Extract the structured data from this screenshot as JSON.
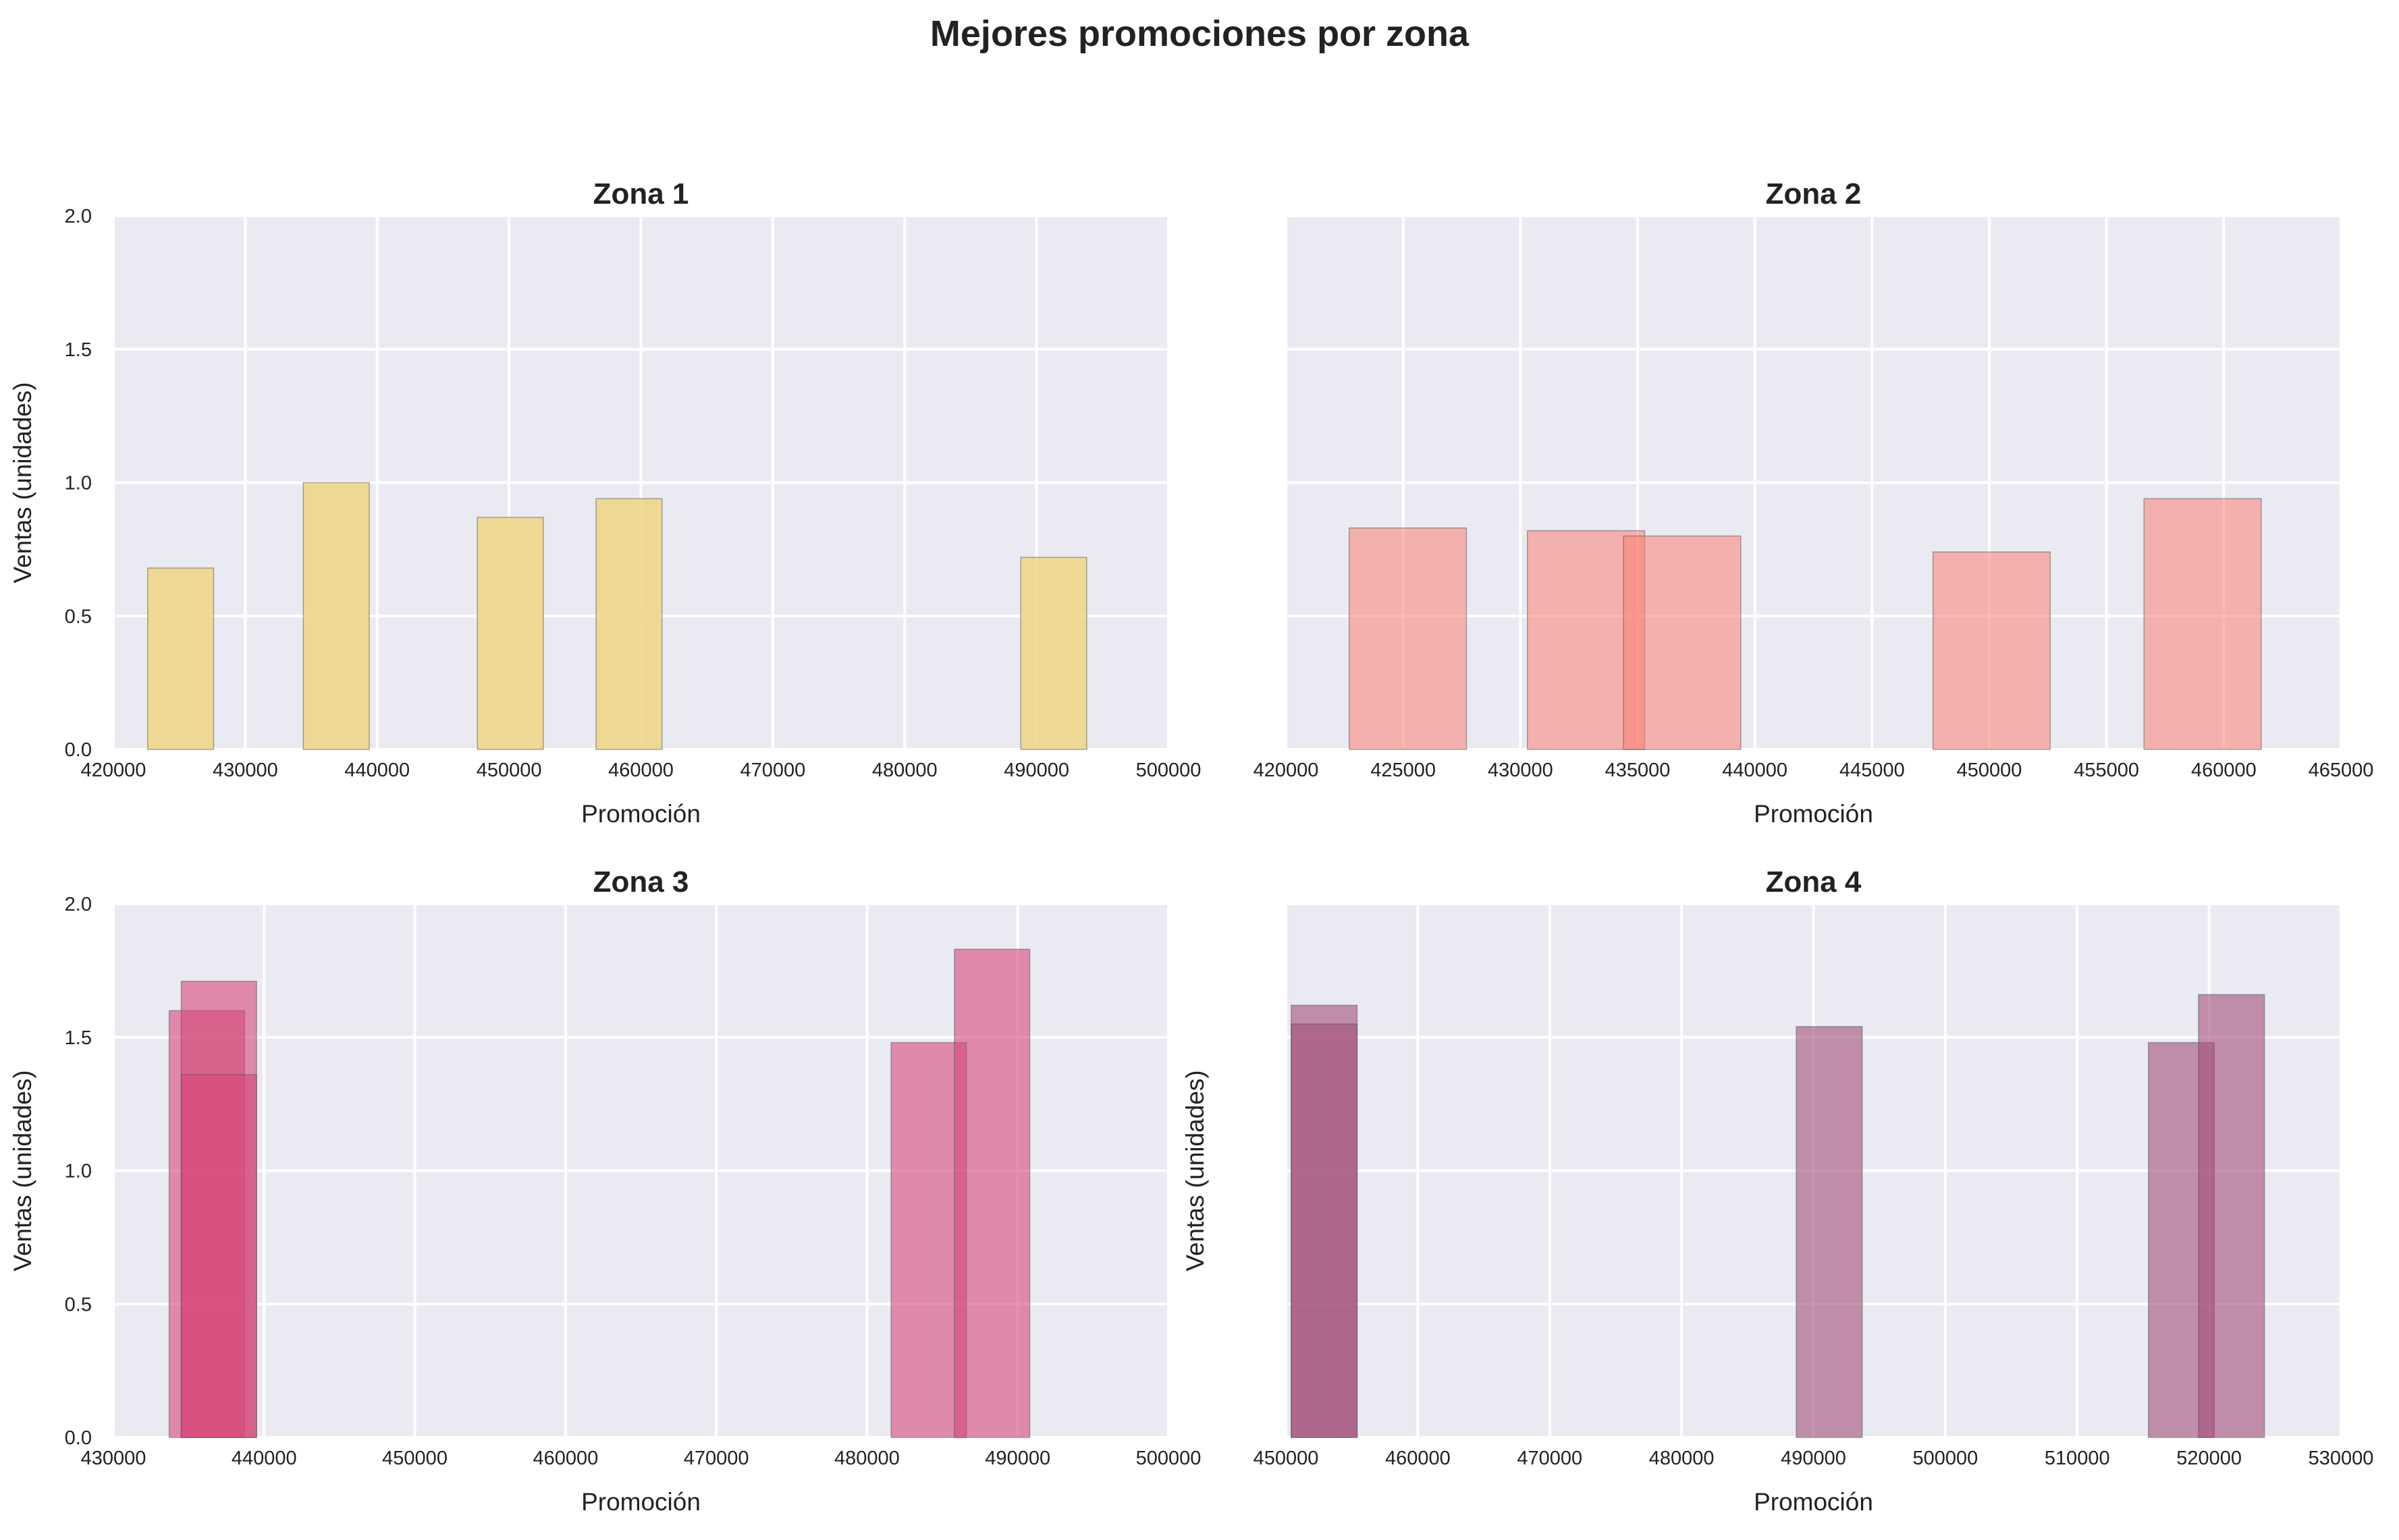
{
  "chart_data": {
    "suptitle": "Mejores promociones por zona",
    "panels": [
      {
        "type": "bar",
        "title": "Zona 1",
        "xlabel": "Promoción",
        "ylabel": "Ventas (unidades)",
        "xlim": [
          420000,
          500000
        ],
        "ylim": [
          0,
          2
        ],
        "xticks": [
          "420000",
          "430000",
          "440000",
          "450000",
          "460000",
          "470000",
          "480000",
          "490000",
          "500000"
        ],
        "yticks": [
          "0.0",
          "0.5",
          "1.0",
          "1.5",
          "2.0"
        ],
        "show_yticks": true,
        "color": "#f0d68a",
        "opacity": 0.9,
        "bars": [
          {
            "x0": 422600,
            "x1": 427600,
            "value": 0.68
          },
          {
            "x0": 434400,
            "x1": 439400,
            "value": 1.0
          },
          {
            "x0": 447600,
            "x1": 452600,
            "value": 0.87
          },
          {
            "x0": 456600,
            "x1": 461600,
            "value": 0.94
          },
          {
            "x0": 488800,
            "x1": 493800,
            "value": 0.72
          }
        ]
      },
      {
        "type": "bar",
        "title": "Zona 2",
        "xlabel": "Promoción",
        "ylabel": "",
        "xlim": [
          420000,
          465000
        ],
        "ylim": [
          0,
          2
        ],
        "xticks": [
          "420000",
          "425000",
          "430000",
          "435000",
          "440000",
          "445000",
          "450000",
          "455000",
          "460000",
          "465000"
        ],
        "yticks": [
          "0.0",
          "0.5",
          "1.0",
          "1.5",
          "2.0"
        ],
        "show_yticks": false,
        "color": "#fa8072",
        "opacity": 0.55,
        "bars": [
          {
            "x0": 422700,
            "x1": 427700,
            "value": 0.83
          },
          {
            "x0": 430300,
            "x1": 435300,
            "value": 0.82
          },
          {
            "x0": 434400,
            "x1": 439400,
            "value": 0.8
          },
          {
            "x0": 447600,
            "x1": 452600,
            "value": 0.74
          },
          {
            "x0": 456600,
            "x1": 461600,
            "value": 0.94
          }
        ]
      },
      {
        "type": "bar",
        "title": "Zona 3",
        "xlabel": "Promoción",
        "ylabel": "Ventas (unidades)",
        "xlim": [
          430000,
          500000
        ],
        "ylim": [
          0,
          2
        ],
        "xticks": [
          "430000",
          "440000",
          "450000",
          "460000",
          "470000",
          "480000",
          "490000",
          "500000"
        ],
        "yticks": [
          "0.0",
          "0.5",
          "1.0",
          "1.5",
          "2.0"
        ],
        "show_yticks": true,
        "color": "#d6487a",
        "opacity": 0.6,
        "bars": [
          {
            "x0": 433700,
            "x1": 438700,
            "value": 1.6
          },
          {
            "x0": 434500,
            "x1": 439500,
            "value": 1.71
          },
          {
            "x0": 434500,
            "x1": 439500,
            "value": 1.36
          },
          {
            "x0": 481600,
            "x1": 486600,
            "value": 1.48
          },
          {
            "x0": 485800,
            "x1": 490800,
            "value": 1.83
          }
        ]
      },
      {
        "type": "bar",
        "title": "Zona 4",
        "xlabel": "Promoción",
        "ylabel": "Ventas (unidades)",
        "xlim": [
          450000,
          530000
        ],
        "ylim": [
          0,
          2
        ],
        "xticks": [
          "450000",
          "460000",
          "470000",
          "480000",
          "490000",
          "500000",
          "510000",
          "520000",
          "530000"
        ],
        "yticks": [
          "0.0",
          "0.5",
          "1.0",
          "1.5",
          "2.0"
        ],
        "show_yticks": false,
        "color": "#a14f7a",
        "opacity": 0.6,
        "bars": [
          {
            "x0": 450400,
            "x1": 455400,
            "value": 1.62
          },
          {
            "x0": 450400,
            "x1": 455400,
            "value": 1.55
          },
          {
            "x0": 488700,
            "x1": 493700,
            "value": 1.54
          },
          {
            "x0": 515400,
            "x1": 520400,
            "value": 1.48
          },
          {
            "x0": 519200,
            "x1": 524200,
            "value": 1.66
          }
        ]
      }
    ]
  }
}
